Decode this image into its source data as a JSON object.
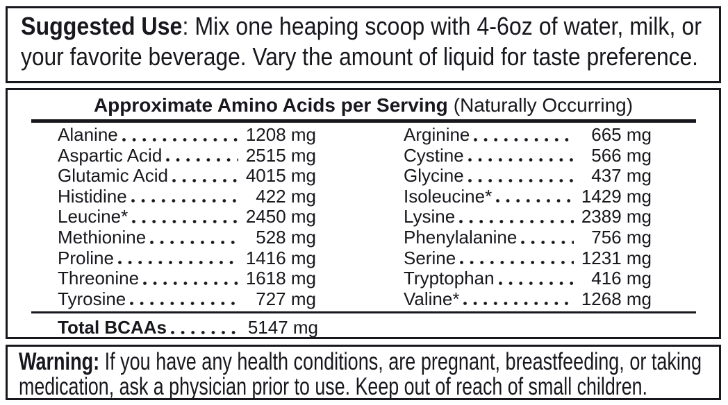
{
  "colors": {
    "ink": "#17171d",
    "paper": "#ffffff"
  },
  "suggested_use": {
    "label": "Suggested Use",
    "line1_rest": ": Mix one heaping scoop with 4-6oz of water, milk, or",
    "line2": "your favorite beverage. Vary the amount of liquid for taste preference."
  },
  "amino_table": {
    "title": "Approximate Amino Acids per Serving",
    "title_note": "(Naturally Occurring)",
    "unit": "mg",
    "left_column": [
      {
        "name": "Alanine",
        "value": "1208 mg"
      },
      {
        "name": "Aspartic Acid",
        "value": "2515 mg"
      },
      {
        "name": "Glutamic Acid",
        "value": "4015 mg"
      },
      {
        "name": "Histidine",
        "value": "422 mg"
      },
      {
        "name": "Leucine*",
        "value": "2450 mg"
      },
      {
        "name": "Methionine",
        "value": "528 mg"
      },
      {
        "name": "Proline",
        "value": "1416 mg"
      },
      {
        "name": "Threonine",
        "value": "1618 mg"
      },
      {
        "name": "Tyrosine",
        "value": "727 mg"
      }
    ],
    "right_column": [
      {
        "name": "Arginine",
        "value": "665 mg"
      },
      {
        "name": "Cystine",
        "value": "566 mg"
      },
      {
        "name": "Glycine",
        "value": "437 mg"
      },
      {
        "name": "Isoleucine*",
        "value": "1429 mg"
      },
      {
        "name": "Lysine",
        "value": "2389 mg"
      },
      {
        "name": "Phenylalanine",
        "value": "756 mg"
      },
      {
        "name": "Serine",
        "value": "1231 mg"
      },
      {
        "name": "Tryptophan",
        "value": "416 mg"
      },
      {
        "name": "Valine*",
        "value": "1268 mg"
      }
    ],
    "total": {
      "name": "Total BCAAs",
      "value": "5147 mg"
    }
  },
  "warning": {
    "label": "Warning:",
    "line1_rest": " If you have any health conditions, are pregnant, breastfeeding, or taking",
    "line2": "medication, ask a physician prior to use. Keep out of reach of small children."
  }
}
